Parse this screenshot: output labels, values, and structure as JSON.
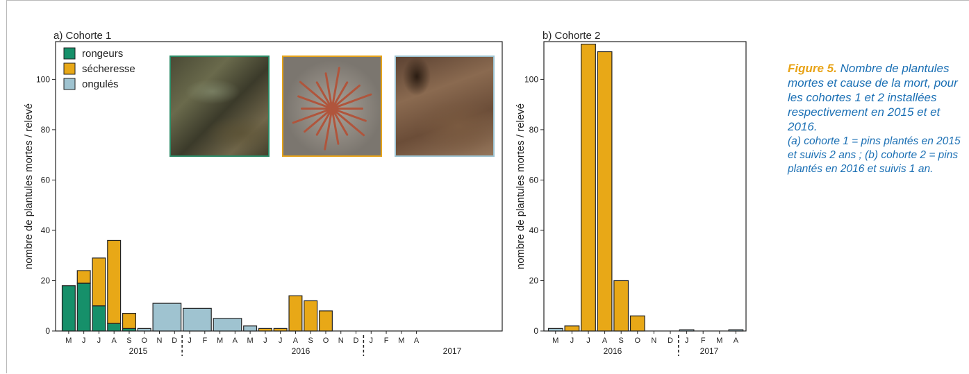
{
  "colors": {
    "rodents": "#16906a",
    "drought": "#e8a817",
    "ungulates": "#9fc3d0",
    "caption_blue": "#1a6fb4",
    "caption_label": "#e8a317"
  },
  "legend": {
    "items": [
      {
        "label": "rongeurs",
        "color": "#16906a"
      },
      {
        "label": "sécheresse",
        "color": "#e8a817"
      },
      {
        "label": "ongulés",
        "color": "#9fc3d0"
      }
    ]
  },
  "photos": [
    {
      "icon": "rodent-damage-photo-icon",
      "border": "#2b8a66"
    },
    {
      "icon": "drought-damage-photo-icon",
      "border": "#e6a31a"
    },
    {
      "icon": "ungulate-damage-photo-icon",
      "border": "#9ec4d2"
    }
  ],
  "caption": {
    "label": "Figure 5.",
    "main": "Nombre de plantules mortes et cause de la mort, pour les cohortes 1 et 2 installées respectivement en 2015 et et 2016.",
    "detail": "(a) cohorte 1 = pins plantés en 2015 et suivis 2 ans ; (b) cohorte 2 = pins plantés en 2016 et suivis 1 an."
  },
  "chart_data": [
    {
      "type": "bar",
      "title": "a) Cohorte 1",
      "ylabel": "nombre de plantules mortes / relevé",
      "ylim": [
        0,
        115
      ],
      "yticks": [
        0,
        20,
        40,
        60,
        80,
        100
      ],
      "grid": false,
      "legend_position": "top-left",
      "categories": [
        "M",
        "J",
        "J",
        "A",
        "S",
        "O",
        "N",
        "D",
        "J",
        "F",
        "M",
        "A",
        "M",
        "J",
        "J",
        "A",
        "S",
        "O",
        "N",
        "D",
        "J",
        "F",
        "M",
        "A"
      ],
      "years": [
        {
          "label": "2015"
        },
        {
          "label": "2016"
        },
        {
          "label": "2017"
        }
      ],
      "bars": [
        {
          "months": "M",
          "rongeurs": 18,
          "sécheresse": 0,
          "ongulés": 0
        },
        {
          "months": "J",
          "rongeurs": 19,
          "sécheresse": 5,
          "ongulés": 0
        },
        {
          "months": "J",
          "rongeurs": 10,
          "sécheresse": 19,
          "ongulés": 0
        },
        {
          "months": "A",
          "rongeurs": 3,
          "sécheresse": 33,
          "ongulés": 0
        },
        {
          "months": "S",
          "rongeurs": 1,
          "sécheresse": 6,
          "ongulés": 0
        },
        {
          "months": "O",
          "rongeurs": 0,
          "sécheresse": 0,
          "ongulés": 1
        },
        {
          "months": "N-D",
          "rongeurs": 0,
          "sécheresse": 0,
          "ongulés": 11
        },
        {
          "months": "J-F",
          "rongeurs": 0,
          "sécheresse": 0,
          "ongulés": 9
        },
        {
          "months": "M-A",
          "rongeurs": 0,
          "sécheresse": 0,
          "ongulés": 5
        },
        {
          "months": "M",
          "rongeurs": 0,
          "sécheresse": 0,
          "ongulés": 2
        },
        {
          "months": "J",
          "rongeurs": 0,
          "sécheresse": 1,
          "ongulés": 0
        },
        {
          "months": "J",
          "rongeurs": 0,
          "sécheresse": 1,
          "ongulés": 0
        },
        {
          "months": "A",
          "rongeurs": 0,
          "sécheresse": 14,
          "ongulés": 0
        },
        {
          "months": "S",
          "rongeurs": 0,
          "sécheresse": 12,
          "ongulés": 0
        },
        {
          "months": "O",
          "rongeurs": 0,
          "sécheresse": 8,
          "ongulés": 0
        },
        {
          "months": "N",
          "rongeurs": 0,
          "sécheresse": 0,
          "ongulés": 0
        },
        {
          "months": "D",
          "rongeurs": 0,
          "sécheresse": 0,
          "ongulés": 0
        },
        {
          "months": "J",
          "rongeurs": 0,
          "sécheresse": 0,
          "ongulés": 0
        },
        {
          "months": "F",
          "rongeurs": 0,
          "sécheresse": 0,
          "ongulés": 0
        },
        {
          "months": "M",
          "rongeurs": 0,
          "sécheresse": 0,
          "ongulés": 0
        },
        {
          "months": "A",
          "rongeurs": 0,
          "sécheresse": 0,
          "ongulés": 0
        }
      ]
    },
    {
      "type": "bar",
      "title": "b) Cohorte 2",
      "ylabel": "nombre de plantules mortes / relevé",
      "ylim": [
        0,
        115
      ],
      "yticks": [
        0,
        20,
        40,
        60,
        80,
        100
      ],
      "grid": false,
      "categories": [
        "M",
        "J",
        "J",
        "A",
        "S",
        "O",
        "N",
        "D",
        "J",
        "F",
        "M",
        "A"
      ],
      "years": [
        {
          "label": "2016"
        },
        {
          "label": "2017"
        }
      ],
      "bars": [
        {
          "month": "M",
          "rongeurs": 0,
          "sécheresse": 0,
          "ongulés": 1
        },
        {
          "month": "J",
          "rongeurs": 0,
          "sécheresse": 2,
          "ongulés": 0
        },
        {
          "month": "J",
          "rongeurs": 0,
          "sécheresse": 114,
          "ongulés": 0
        },
        {
          "month": "A",
          "rongeurs": 0,
          "sécheresse": 111,
          "ongulés": 0
        },
        {
          "month": "S",
          "rongeurs": 0,
          "sécheresse": 20,
          "ongulés": 0
        },
        {
          "month": "O",
          "rongeurs": 0,
          "sécheresse": 6,
          "ongulés": 0
        },
        {
          "month": "N",
          "rongeurs": 0,
          "sécheresse": 0,
          "ongulés": 0
        },
        {
          "month": "D",
          "rongeurs": 0,
          "sécheresse": 0,
          "ongulés": 0
        },
        {
          "month": "J",
          "rongeurs": 0,
          "sécheresse": 0,
          "ongulés": 0.5
        },
        {
          "month": "F",
          "rongeurs": 0,
          "sécheresse": 0,
          "ongulés": 0
        },
        {
          "month": "M",
          "rongeurs": 0,
          "sécheresse": 0,
          "ongulés": 0
        },
        {
          "month": "A",
          "rongeurs": 0,
          "sécheresse": 0,
          "ongulés": 0.5
        }
      ]
    }
  ]
}
